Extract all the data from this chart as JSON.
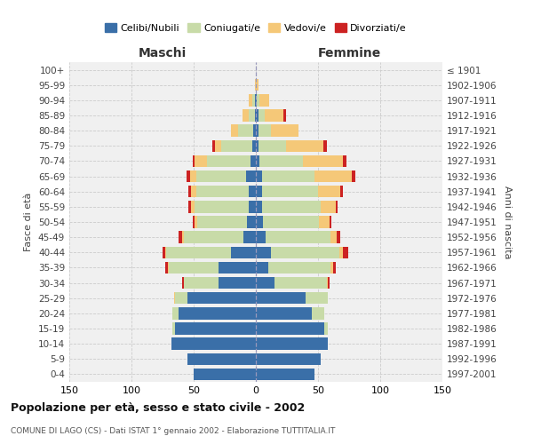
{
  "age_groups": [
    "0-4",
    "5-9",
    "10-14",
    "15-19",
    "20-24",
    "25-29",
    "30-34",
    "35-39",
    "40-44",
    "45-49",
    "50-54",
    "55-59",
    "60-64",
    "65-69",
    "70-74",
    "75-79",
    "80-84",
    "85-89",
    "90-94",
    "95-99",
    "100+"
  ],
  "birth_years": [
    "1997-2001",
    "1992-1996",
    "1987-1991",
    "1982-1986",
    "1977-1981",
    "1972-1976",
    "1967-1971",
    "1962-1966",
    "1957-1961",
    "1952-1956",
    "1947-1951",
    "1942-1946",
    "1937-1941",
    "1932-1936",
    "1927-1931",
    "1922-1926",
    "1917-1921",
    "1912-1916",
    "1907-1911",
    "1902-1906",
    "≤ 1901"
  ],
  "maschi": {
    "celibi": [
      50,
      55,
      68,
      65,
      62,
      55,
      30,
      30,
      20,
      10,
      7,
      6,
      6,
      8,
      4,
      3,
      2,
      1,
      1,
      0,
      0
    ],
    "coniugati": [
      0,
      0,
      0,
      2,
      5,
      10,
      28,
      40,
      52,
      48,
      40,
      43,
      42,
      40,
      35,
      25,
      12,
      5,
      2,
      0,
      0
    ],
    "vedovi": [
      0,
      0,
      0,
      0,
      0,
      1,
      0,
      1,
      1,
      1,
      2,
      3,
      4,
      5,
      10,
      5,
      6,
      5,
      3,
      1,
      0
    ],
    "divorziati": [
      0,
      0,
      0,
      0,
      0,
      0,
      1,
      2,
      2,
      3,
      2,
      2,
      2,
      3,
      2,
      2,
      0,
      0,
      0,
      0,
      0
    ]
  },
  "femmine": {
    "nubili": [
      47,
      52,
      58,
      55,
      45,
      40,
      15,
      10,
      12,
      8,
      6,
      5,
      5,
      5,
      3,
      2,
      2,
      2,
      1,
      0,
      0
    ],
    "coniugate": [
      0,
      0,
      0,
      3,
      10,
      18,
      42,
      50,
      55,
      52,
      45,
      47,
      45,
      42,
      35,
      22,
      10,
      5,
      2,
      0,
      0
    ],
    "vedove": [
      0,
      0,
      0,
      0,
      0,
      0,
      1,
      2,
      3,
      5,
      8,
      12,
      18,
      30,
      32,
      30,
      22,
      15,
      8,
      2,
      0
    ],
    "divorziate": [
      0,
      0,
      0,
      0,
      0,
      0,
      1,
      2,
      4,
      3,
      2,
      2,
      2,
      3,
      3,
      3,
      0,
      2,
      0,
      0,
      0
    ]
  },
  "colors": {
    "celibi": "#3A6FA8",
    "coniugati": "#C8DBA8",
    "vedovi": "#F5C878",
    "divorziati": "#CC2222"
  },
  "legend_labels": [
    "Celibi/Nubili",
    "Coniugati/e",
    "Vedovi/e",
    "Divorziati/e"
  ],
  "xlim": 150,
  "title": "Popolazione per età, sesso e stato civile - 2002",
  "subtitle": "COMUNE DI LAGO (CS) - Dati ISTAT 1° gennaio 2002 - Elaborazione TUTTITALIA.IT",
  "ylabel_left": "Fasce di età",
  "ylabel_right": "Anni di nascita",
  "xlabel_left": "Maschi",
  "xlabel_right": "Femmine"
}
